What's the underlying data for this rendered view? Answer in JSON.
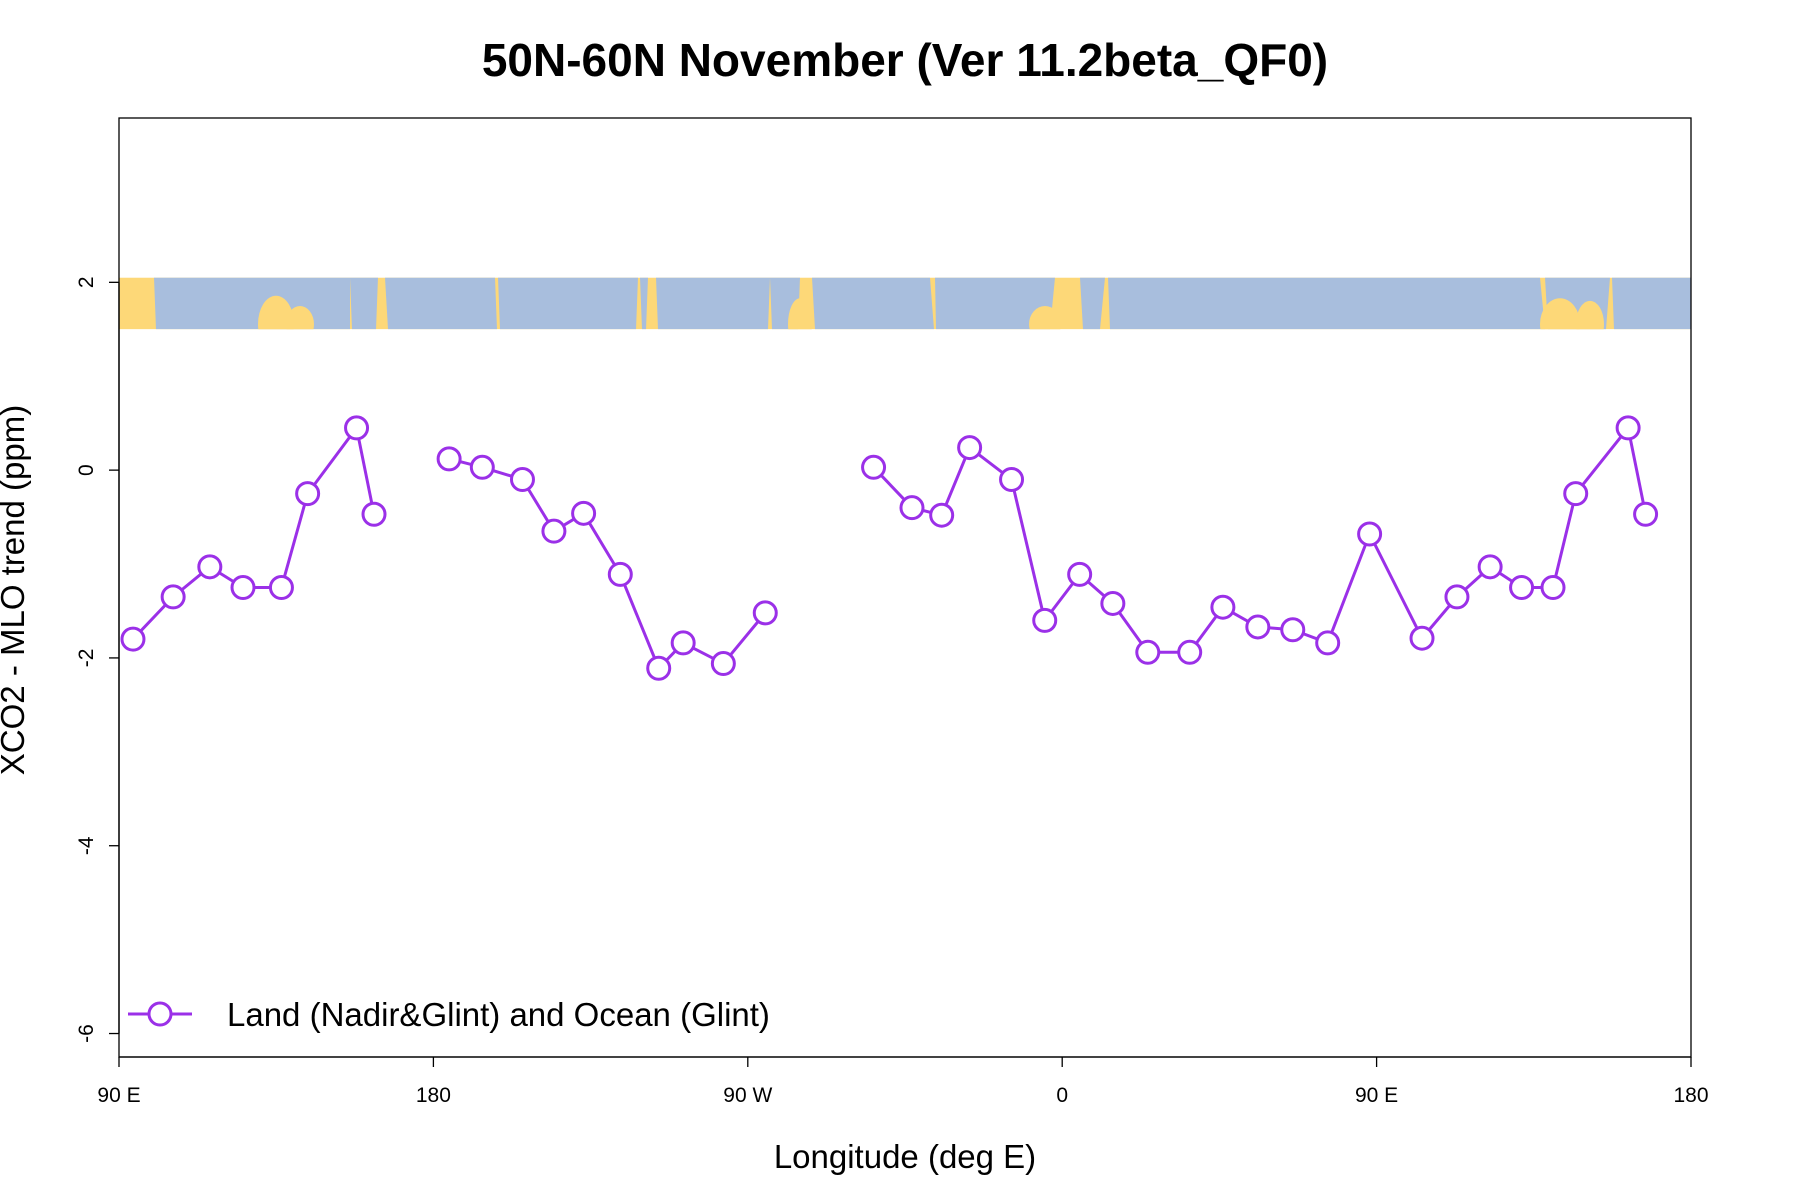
{
  "chart_data": {
    "type": "line",
    "title": "50N-60N November (Ver 11.2beta_QF0)",
    "xlabel": "Longitude (deg E)",
    "ylabel": "XCO2 - MLO trend (ppm)",
    "xlim": [
      90,
      540
    ],
    "ylim": [
      -6.25,
      3.75
    ],
    "x_ticks": [
      {
        "value": 90,
        "label": "90 E"
      },
      {
        "value": 180,
        "label": "180"
      },
      {
        "value": 270,
        "label": "90 W"
      },
      {
        "value": 360,
        "label": "0"
      },
      {
        "value": 450,
        "label": "90 E"
      },
      {
        "value": 540,
        "label": "180"
      }
    ],
    "y_ticks": [
      {
        "value": 2,
        "label": "2"
      },
      {
        "value": 0,
        "label": "0"
      },
      {
        "value": -2,
        "label": "-2"
      },
      {
        "value": -4,
        "label": "-4"
      },
      {
        "value": -6,
        "label": "-6"
      }
    ],
    "legend_position": "bottom-left",
    "grid": false,
    "colors": {
      "series": "#9b30e8",
      "land": "#fdd878",
      "ocean": "#a8bedd"
    },
    "map_strip": {
      "y_top": 2.05,
      "y_bottom": 1.5
    },
    "series": [
      {
        "name": "Land (Nadir&Glint) and Ocean (Glint)",
        "segments": [
          {
            "x": [
              94,
              105.5,
              116,
              125.5,
              136.5,
              144,
              158,
              163
            ],
            "y": [
              -1.8,
              -1.35,
              -1.03,
              -1.25,
              -1.25,
              -0.25,
              0.45,
              -0.47
            ]
          },
          {
            "x": [
              184.5,
              194,
              205.5,
              214.5,
              223,
              233.5,
              244.5,
              251.5,
              263,
              275
            ],
            "y": [
              0.12,
              0.03,
              -0.1,
              -0.65,
              -0.46,
              -1.11,
              -2.11,
              -1.84,
              -2.06,
              -1.52
            ]
          },
          {
            "x": [
              306,
              317,
              325.5,
              333.5,
              345.5,
              355,
              365,
              374.5,
              384.5,
              396.5,
              406,
              416,
              426,
              436,
              448,
              463,
              473,
              482.5,
              491.5,
              500.5,
              507,
              522,
              527
            ],
            "y": [
              0.03,
              -0.4,
              -0.48,
              0.24,
              -0.1,
              -1.6,
              -1.11,
              -1.42,
              -1.94,
              -1.94,
              -1.46,
              -1.67,
              -1.7,
              -1.84,
              -0.68,
              -1.79,
              -1.35,
              -1.03,
              -1.25,
              -1.25,
              -0.25,
              0.45,
              -0.47
            ]
          }
        ]
      }
    ]
  }
}
